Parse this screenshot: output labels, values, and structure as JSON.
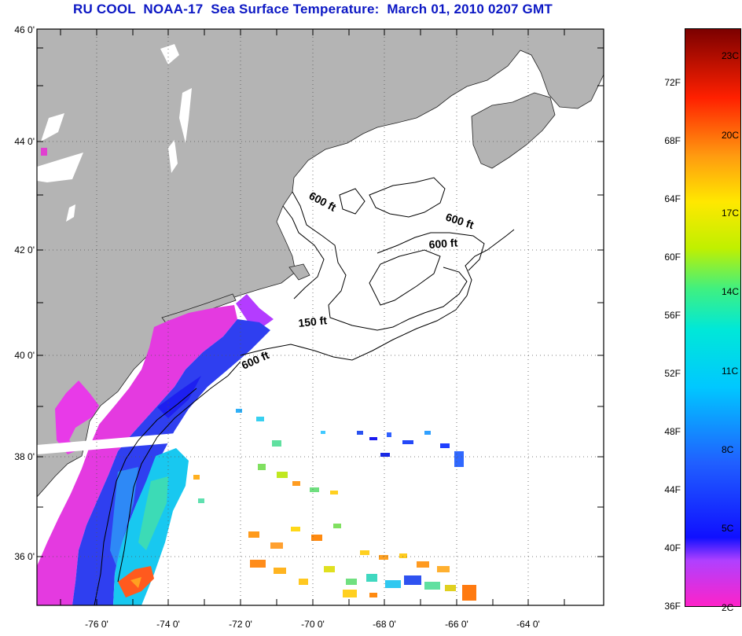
{
  "title": "RU COOL  NOAA-17  Sea Surface Temperature:  March 01, 2010 0207 GMT",
  "latitude_labels": [
    "46 0'",
    "44 0'",
    "42 0'",
    "40 0'",
    "38 0'",
    "36 0'"
  ],
  "longitude_labels": [
    "-76 0'",
    "-74 0'",
    "-72 0'",
    "-70 0'",
    "-68 0'",
    "-66 0'",
    "-64 0'"
  ],
  "isobath_labels": [
    "600 ft",
    "600 ft",
    "600 ft",
    "150 ft",
    "600 ft"
  ],
  "colorbar": {
    "fahrenheit": [
      "72F",
      "68F",
      "64F",
      "60F",
      "56F",
      "52F",
      "48F",
      "44F",
      "40F",
      "36F"
    ],
    "celsius": [
      "23C",
      "20C",
      "17C",
      "14C",
      "11C",
      "8C",
      "5C",
      "2C"
    ],
    "range_f": [
      36,
      76
    ],
    "range_c": [
      2,
      24
    ]
  },
  "colors": {
    "land": "#b4b4b4",
    "ocean_no_data": "#ffffff",
    "title": "#0b17c4"
  }
}
